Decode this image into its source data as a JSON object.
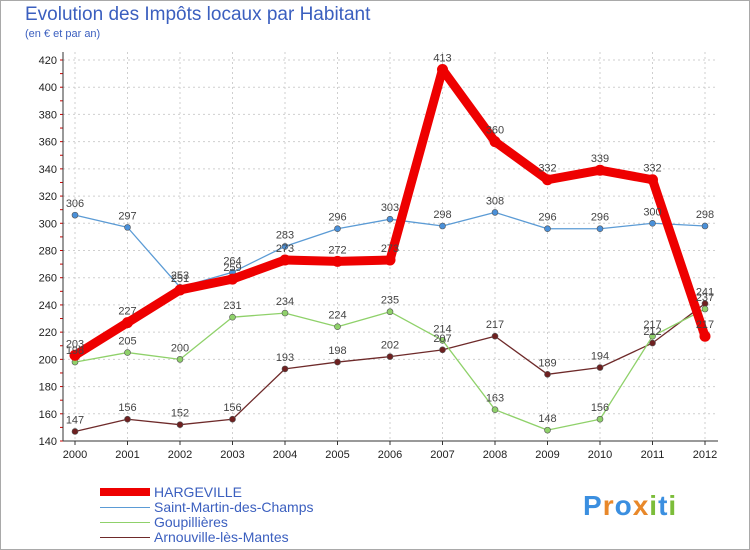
{
  "title": "Evolution des Impôts locaux par Habitant",
  "subtitle": "(en € et par an)",
  "logo": {
    "text": "Proxiti",
    "letters": [
      "P",
      "r",
      "o",
      "x",
      "i",
      "t",
      "i"
    ],
    "colors": [
      "#3b8fe0",
      "#e8882a",
      "#3b8fe0",
      "#e8882a",
      "#7cbd3a",
      "#3b8fe0",
      "#7cbd3a"
    ]
  },
  "chart_data": {
    "type": "line",
    "title": "Evolution des Impôts locaux par Habitant",
    "subtitle": "(en € et par an)",
    "xlabel": "",
    "ylabel": "",
    "ylim": [
      140,
      420
    ],
    "yticks": [
      140,
      160,
      180,
      200,
      220,
      240,
      260,
      280,
      300,
      320,
      340,
      360,
      380,
      400,
      420
    ],
    "categories": [
      "2000",
      "2001",
      "2002",
      "2003",
      "2004",
      "2005",
      "2006",
      "2007",
      "2008",
      "2009",
      "2010",
      "2011",
      "2012"
    ],
    "series": [
      {
        "name": "HARGEVILLE",
        "color": "#ee0000",
        "values": [
          203,
          227,
          251,
          259,
          273,
          272,
          273,
          413,
          360,
          332,
          339,
          332,
          217
        ],
        "labels": [
          "203",
          "227",
          "251",
          "259",
          "273",
          "272",
          "273",
          "413",
          "360",
          "332",
          "339",
          "332",
          "217"
        ]
      },
      {
        "name": "Saint-Martin-des-Champs",
        "color": "#5b9bd5",
        "values": [
          306,
          297,
          253,
          264,
          283,
          296,
          303,
          298,
          308,
          296,
          296,
          300,
          298
        ],
        "labels": [
          "306",
          "297",
          "253",
          "264",
          "283",
          "296",
          "303",
          "298",
          "308",
          "296",
          "296",
          "300",
          "298"
        ]
      },
      {
        "name": "Goupillières",
        "color": "#8fd16a",
        "values": [
          198,
          205,
          200,
          231,
          234,
          224,
          235,
          214,
          163,
          148,
          156,
          217,
          237
        ],
        "labels": [
          "198",
          "205",
          "200",
          "231",
          "234",
          "224",
          "235",
          "214",
          "163",
          "148",
          "156",
          "217",
          "237"
        ]
      },
      {
        "name": "Arnouville-lès-Mantes",
        "color": "#6e2a2a",
        "values": [
          147,
          156,
          152,
          156,
          193,
          198,
          202,
          207,
          217,
          189,
          194,
          212,
          241
        ],
        "labels": [
          "147",
          "156",
          "152",
          "156",
          "193",
          "198",
          "202",
          "207",
          "217",
          "189",
          "194",
          "212",
          "241"
        ]
      }
    ]
  }
}
